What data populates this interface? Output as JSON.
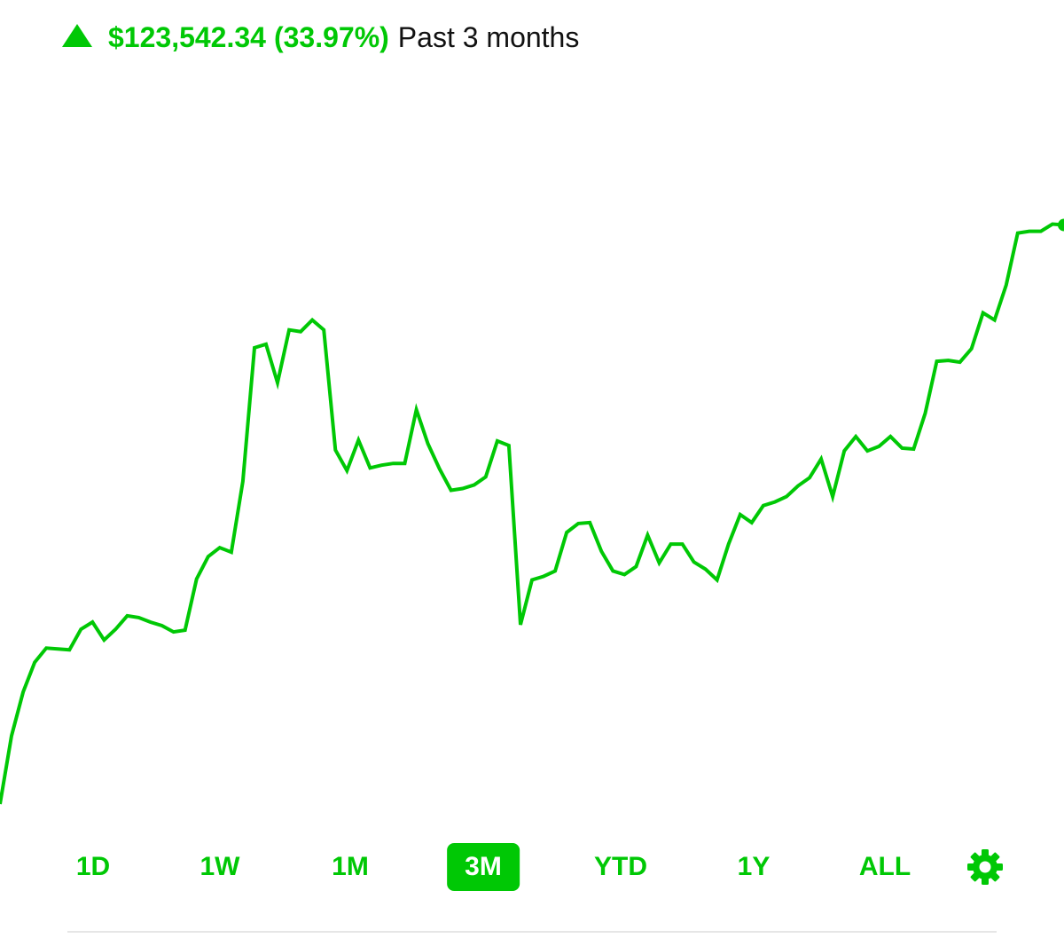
{
  "header": {
    "change_amount": "$123,542.34",
    "change_percent": "(33.97%)",
    "period_label": "Past 3 months",
    "direction": "up"
  },
  "colors": {
    "accent": "#00c805",
    "text": "#111111",
    "divider": "#e6e6e6"
  },
  "ranges": [
    {
      "label": "1D",
      "active": false
    },
    {
      "label": "1W",
      "active": false
    },
    {
      "label": "1M",
      "active": false
    },
    {
      "label": "3M",
      "active": true
    },
    {
      "label": "YTD",
      "active": false
    },
    {
      "label": "1Y",
      "active": false
    },
    {
      "label": "ALL",
      "active": false
    }
  ],
  "settings_icon": "gear-icon",
  "chart_data": {
    "type": "line",
    "series": [
      {
        "values": [
          0.0,
          7.6,
          12.5,
          15.8,
          17.4,
          17.3,
          17.2,
          19.5,
          20.3,
          18.3,
          19.5,
          21.0,
          20.8,
          20.3,
          19.9,
          19.2,
          19.4,
          25.1,
          27.6,
          28.6,
          28.1,
          36.0,
          50.9,
          51.3,
          47.0,
          52.9,
          52.7,
          54.0,
          52.9,
          39.5,
          37.2,
          40.6,
          37.5,
          37.8,
          38.0,
          38.0,
          44.0,
          40.2,
          37.4,
          35.0,
          35.2,
          35.6,
          36.5,
          40.5,
          40.0,
          20.0,
          25.0,
          25.4,
          26.0,
          30.3,
          31.3,
          31.4,
          28.2,
          26.0,
          25.6,
          26.5,
          30.0,
          26.9,
          29.0,
          29.0,
          27.0,
          26.2,
          25.0,
          29.0,
          32.3,
          31.4,
          33.3,
          33.7,
          34.3,
          35.5,
          36.4,
          38.5,
          34.3,
          39.4,
          41.0,
          39.4,
          39.9,
          41.0,
          39.7,
          39.6,
          43.6,
          49.4,
          49.5,
          49.3,
          50.8,
          54.8,
          54.0,
          57.9,
          63.7,
          63.9,
          63.9,
          64.7,
          64.6
        ]
      }
    ],
    "x_label": "",
    "y_label": "",
    "grid": false,
    "legend": "none"
  }
}
